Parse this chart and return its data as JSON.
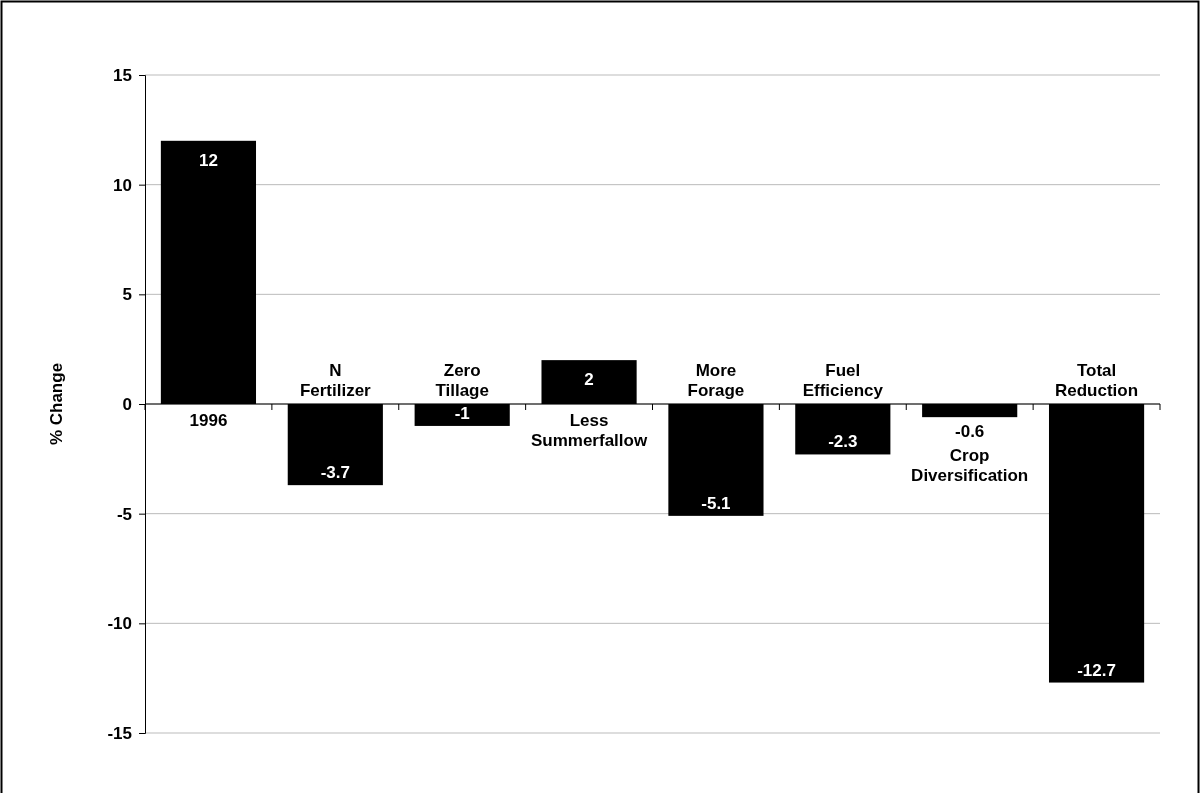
{
  "chart_data": {
    "type": "bar",
    "ylabel": "% Change",
    "categories": [
      "1996",
      "N Fertilizer",
      "Zero Tillage",
      "Less Summerfallow",
      "More Forage",
      "Fuel Efficiency",
      "Crop Diversification",
      "Total Reduction"
    ],
    "values": [
      12,
      -3.7,
      -1,
      2,
      -5.1,
      -2.3,
      -0.6,
      -12.7
    ],
    "color": "#000000",
    "ylim": [
      -15,
      15
    ],
    "yticks": [
      -15,
      -10,
      -5,
      0,
      5,
      10,
      15
    ],
    "grid": "y",
    "data_labels": true
  }
}
